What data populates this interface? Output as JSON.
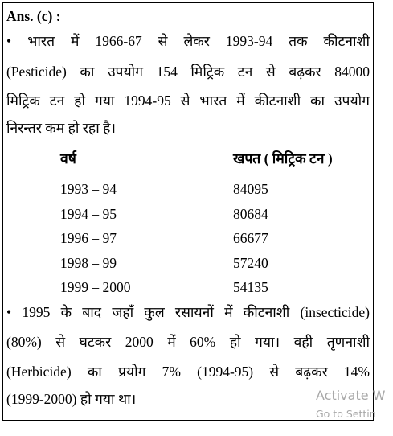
{
  "answer_label": "Ans. (c) :",
  "paragraph_1": [
    "• भारत में 1966-67 से लेकर 1993-94 तक कीटनाशी",
    "(Pesticide) का उपयोग 154 मिट्रिक टन से बढ़कर 84000",
    "मिट्रिक टन हो गया 1994-95 से भारत में कीटनाशी का उपयोग",
    "निरन्तर कम हो रहा है।"
  ],
  "table": {
    "header": [
      "वर्ष",
      "खपत ( मिट्रिक टन )"
    ],
    "rows": [
      [
        "1993 – 94",
        "84095"
      ],
      [
        "1994 – 95",
        "80684"
      ],
      [
        "1996 – 97",
        "66677"
      ],
      [
        "1998 – 99",
        "57240"
      ],
      [
        "1999 – 2000",
        "54135"
      ]
    ]
  },
  "paragraph_2": [
    "• 1995 के बाद जहाँ कुल रसायनों में कीटनाशी (insecticide)",
    "(80%) से घटकर 2000 में 60% हो गया। वही तृणनाशी",
    "(Herbicide) का प्रयोग 7% (1994-95) से बढ़कर 14%",
    "(1999-2000) हो गया था।"
  ],
  "watermark": [
    "Activate W",
    "Go to Settin"
  ]
}
